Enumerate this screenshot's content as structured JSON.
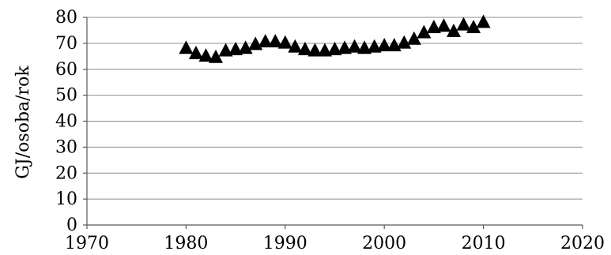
{
  "chart_data": {
    "type": "scatter",
    "title": "",
    "xlabel": "",
    "ylabel": "GJ/osoba/rok",
    "xlim": [
      1970,
      2020
    ],
    "ylim": [
      0,
      80
    ],
    "xticks": [
      1970,
      1980,
      1990,
      2000,
      2010,
      2020
    ],
    "yticks": [
      0,
      10,
      20,
      30,
      40,
      50,
      60,
      70,
      80
    ],
    "grid": "horizontal",
    "marker": "triangle",
    "color": "#000000",
    "series": [
      {
        "x": [
          1980,
          1981,
          1982,
          1983,
          1984,
          1985,
          1986,
          1987,
          1988,
          1989,
          1990,
          1991,
          1992,
          1993,
          1994,
          1995,
          1996,
          1997,
          1998,
          1999,
          2000,
          2001,
          2002,
          2003,
          2004,
          2005,
          2006,
          2007,
          2008,
          2009,
          2010
        ],
        "y": [
          68,
          66,
          65,
          64.5,
          67,
          67.5,
          68,
          69.5,
          70.5,
          70.5,
          70,
          68.5,
          67.5,
          67,
          67,
          67.5,
          68,
          68.5,
          68,
          68.5,
          69,
          69,
          70,
          71.5,
          74,
          76,
          76.5,
          74.5,
          77,
          76,
          78
        ]
      }
    ]
  }
}
